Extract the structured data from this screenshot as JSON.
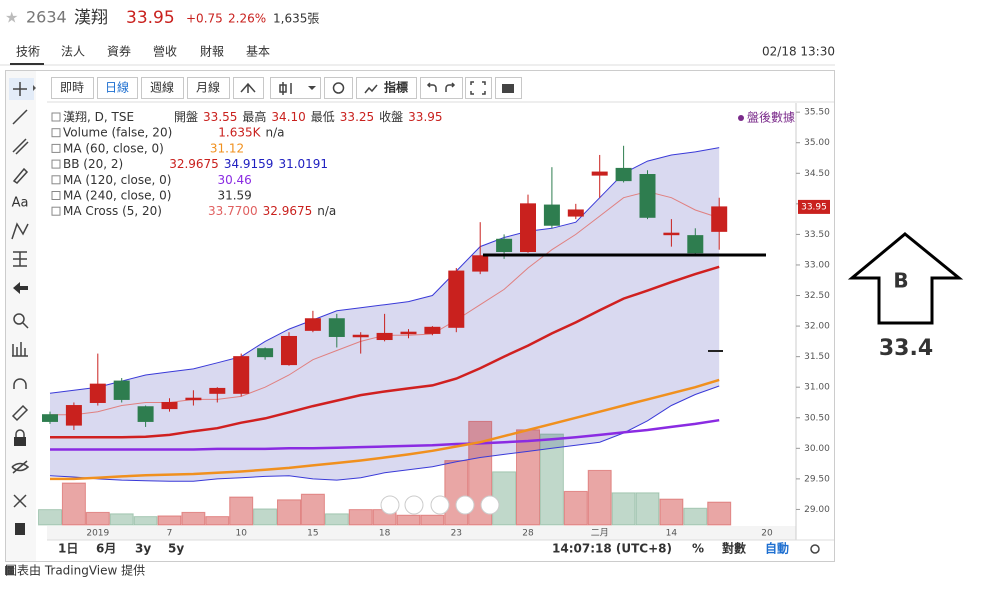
{
  "header": {
    "code": "2634",
    "name": "漢翔",
    "price": "33.95",
    "change": "+0.75",
    "change_pct": "2.26%",
    "volume": "1,635張"
  },
  "tabs": [
    "技術",
    "法人",
    "資券",
    "營收",
    "財報",
    "基本"
  ],
  "timestamp": "02/18 13:30",
  "toolbar": [
    "即時",
    "日線",
    "週線",
    "月線",
    "指標"
  ],
  "sidebar": {
    "text_tool": "Aa"
  },
  "after_hours": "盤後數據",
  "legend": [
    {
      "name": "漢翔, D, TSE",
      "values": [
        {
          "text": "開盤",
          "color": "#333333"
        },
        {
          "text": "33.55",
          "color": "#c9211e"
        },
        {
          "text": "最高",
          "color": "#333333"
        },
        {
          "text": "34.10",
          "color": "#c9211e"
        },
        {
          "text": "最低",
          "color": "#333333"
        },
        {
          "text": "33.25",
          "color": "#c9211e"
        },
        {
          "text": "收盤",
          "color": "#333333"
        },
        {
          "text": "33.95",
          "color": "#c9211e"
        }
      ]
    },
    {
      "name": "Volume (false, 20)",
      "values": [
        {
          "text": "1.635K",
          "color": "#c9211e"
        },
        {
          "text": "n/a",
          "color": "#333333"
        }
      ]
    },
    {
      "name": "MA (60, close, 0)",
      "values": [
        {
          "text": "31.12",
          "color": "#f0901e"
        }
      ]
    },
    {
      "name": "BB (20, 2)",
      "values": [
        {
          "text": "32.9675",
          "color": "#c9211e"
        },
        {
          "text": "34.9159",
          "color": "#2020c0"
        },
        {
          "text": "31.0191",
          "color": "#2020c0"
        }
      ]
    },
    {
      "name": "MA (120, close, 0)",
      "values": [
        {
          "text": "30.46",
          "color": "#8a2be2"
        }
      ]
    },
    {
      "name": "MA (240, close, 0)",
      "values": [
        {
          "text": "31.59",
          "color": "#333333"
        }
      ]
    },
    {
      "name": "MA Cross (5, 20)",
      "values": [
        {
          "text": "33.7700",
          "color": "#e06060"
        },
        {
          "text": "32.9675",
          "color": "#c9211e"
        },
        {
          "text": "n/a",
          "color": "#333333"
        }
      ]
    }
  ],
  "chart_data": {
    "type": "candlestick",
    "categories": [
      null,
      null,
      "2019",
      null,
      null,
      "7",
      null,
      null,
      "10",
      null,
      null,
      "15",
      null,
      null,
      "18",
      null,
      null,
      "23",
      null,
      null,
      "28",
      null,
      null,
      "二月",
      null,
      null,
      "14",
      null,
      null,
      null,
      "20"
    ],
    "open": [
      30.55,
      30.38,
      30.75,
      31.1,
      30.68,
      30.65,
      30.8,
      30.9,
      30.9,
      31.63,
      31.37,
      31.93,
      32.12,
      31.83,
      31.78,
      31.88,
      31.88,
      31.98,
      32.9,
      33.42,
      33.22,
      33.98,
      33.8,
      34.47,
      34.58,
      34.48,
      33.5,
      33.48,
      33.55,
      null,
      null
    ],
    "high": [
      30.6,
      30.75,
      31.55,
      31.15,
      30.7,
      30.82,
      30.95,
      31.0,
      31.55,
      31.65,
      31.9,
      32.25,
      32.2,
      31.9,
      32.2,
      31.95,
      32.0,
      32.95,
      33.7,
      33.5,
      34.15,
      34.6,
      34.0,
      34.8,
      34.95,
      34.55,
      33.75,
      33.6,
      34.1,
      null,
      null
    ],
    "low": [
      30.4,
      30.3,
      30.7,
      30.75,
      30.35,
      30.6,
      30.7,
      30.75,
      30.85,
      31.45,
      31.35,
      31.9,
      31.65,
      31.55,
      31.75,
      31.8,
      31.85,
      31.9,
      32.85,
      33.1,
      33.2,
      33.6,
      33.75,
      34.1,
      34.35,
      33.75,
      33.3,
      33.15,
      33.25,
      null,
      null
    ],
    "close": [
      30.44,
      30.7,
      31.05,
      30.8,
      30.44,
      30.75,
      30.82,
      30.98,
      31.5,
      31.5,
      31.83,
      32.12,
      31.83,
      31.85,
      31.88,
      31.9,
      31.98,
      32.9,
      33.15,
      33.22,
      34.0,
      33.65,
      33.9,
      34.52,
      34.38,
      33.78,
      33.52,
      33.2,
      33.95,
      null,
      null
    ],
    "up_color": "#c9211e",
    "down_color": "#2e7d4f",
    "volume": {
      "up_color": "rgba(201,33,30,0.4)",
      "down_color": "rgba(46,125,79,0.3)",
      "values": [
        1.1,
        3.0,
        0.9,
        0.8,
        0.6,
        0.65,
        0.9,
        0.6,
        2.0,
        1.15,
        1.8,
        2.2,
        0.8,
        1.1,
        1.1,
        0.7,
        0.7,
        4.6,
        7.4,
        3.8,
        6.8,
        6.5,
        2.4,
        3.9,
        2.3,
        2.3,
        1.85,
        1.2,
        1.635,
        null,
        null
      ]
    },
    "band": {
      "fill": "rgba(120,120,200,0.28)",
      "color": "#3a3ad8",
      "upper": [
        30.9,
        30.95,
        31.0,
        31.1,
        31.2,
        31.25,
        31.3,
        31.4,
        31.5,
        31.75,
        31.95,
        32.1,
        32.25,
        32.3,
        32.35,
        32.4,
        32.5,
        32.9,
        33.3,
        33.45,
        33.55,
        33.6,
        33.7,
        34.1,
        34.5,
        34.7,
        34.8,
        34.85,
        34.92,
        null,
        null
      ],
      "lower": [
        29.55,
        29.53,
        29.5,
        29.48,
        29.47,
        29.46,
        29.46,
        29.5,
        29.52,
        29.54,
        29.55,
        29.5,
        29.48,
        29.52,
        29.6,
        29.65,
        29.7,
        29.78,
        29.85,
        29.9,
        29.95,
        30.0,
        30.05,
        30.1,
        30.25,
        30.45,
        30.7,
        30.88,
        31.02,
        null,
        null
      ]
    },
    "overlays": [
      {
        "color": "#9a9ae0",
        "width": 1,
        "values": [
          30.18,
          30.18,
          30.18,
          30.18,
          30.19,
          30.22,
          30.28,
          30.33,
          30.42,
          30.49,
          30.59,
          30.69,
          30.78,
          30.87,
          30.93,
          30.98,
          31.03,
          31.14,
          31.31,
          31.5,
          31.68,
          31.88,
          32.06,
          32.26,
          32.45,
          32.58,
          32.72,
          32.85,
          32.97,
          null,
          null
        ],
        "hidden": true
      },
      {
        "color": "#8a2be2",
        "width": 2.5,
        "values": [
          29.98,
          29.98,
          29.98,
          29.98,
          29.98,
          29.98,
          29.98,
          29.99,
          29.99,
          29.99,
          30.0,
          30.0,
          30.01,
          30.02,
          30.03,
          30.04,
          30.05,
          30.07,
          30.08,
          30.1,
          30.12,
          30.15,
          30.18,
          30.22,
          30.26,
          30.3,
          30.35,
          30.4,
          30.46,
          null,
          null
        ]
      },
      {
        "color": "#f0901e",
        "width": 2.5,
        "values": [
          29.5,
          29.5,
          29.52,
          29.54,
          29.56,
          29.57,
          29.58,
          29.6,
          29.62,
          29.65,
          29.68,
          29.72,
          29.76,
          29.8,
          29.85,
          29.9,
          29.96,
          30.03,
          30.1,
          30.2,
          30.3,
          30.4,
          30.5,
          30.6,
          30.7,
          30.8,
          30.9,
          31.0,
          31.12,
          null,
          null
        ]
      },
      {
        "color": "#d02020",
        "width": 2.5,
        "values": [
          30.18,
          30.18,
          30.18,
          30.18,
          30.19,
          30.22,
          30.28,
          30.33,
          30.42,
          30.49,
          30.59,
          30.69,
          30.78,
          30.87,
          30.93,
          30.98,
          31.03,
          31.14,
          31.31,
          31.5,
          31.68,
          31.88,
          32.06,
          32.26,
          32.45,
          32.58,
          32.72,
          32.85,
          32.97,
          null,
          null
        ]
      },
      {
        "color": "#e08080",
        "width": 1,
        "values": [
          30.55,
          30.55,
          30.6,
          30.7,
          30.75,
          30.75,
          30.8,
          30.8,
          30.85,
          31.0,
          31.2,
          31.45,
          31.6,
          31.75,
          31.85,
          31.85,
          31.87,
          32.1,
          32.35,
          32.6,
          32.95,
          33.25,
          33.5,
          33.8,
          34.1,
          34.2,
          34.1,
          33.9,
          33.77,
          null,
          null
        ]
      }
    ],
    "ylim": [
      28.5,
      35.65
    ],
    "yticks": [
      {
        "value": 29,
        "label": "29.00"
      },
      {
        "value": 29.5,
        "label": "29.50"
      },
      {
        "value": 30,
        "label": "30.00"
      },
      {
        "value": 30.5,
        "label": "30.50"
      },
      {
        "value": 31,
        "label": "31.00"
      },
      {
        "value": 31.5,
        "label": "31.50"
      },
      {
        "value": 32,
        "label": "32.00"
      },
      {
        "value": 32.5,
        "label": "32.50"
      },
      {
        "value": 33,
        "label": "33.00"
      },
      {
        "value": 33.5,
        "label": "33.50"
      },
      {
        "value": 34,
        "label": "34.00"
      },
      {
        "value": 34.5,
        "label": "34.50"
      },
      {
        "value": 35,
        "label": "35.00"
      },
      {
        "value": 35.5,
        "label": "35.50"
      }
    ],
    "price_marker": {
      "value": 33.95,
      "color": "#c9211e"
    }
  },
  "bottom_bar": {
    "ranges": [
      "1日",
      "6月",
      "3y",
      "5y"
    ],
    "time": "14:07:18 (UTC+8)",
    "percent": "%",
    "log": "對數",
    "auto": "自動"
  },
  "annotation": {
    "label": "B",
    "value": "33.4"
  },
  "footer": "圖表由 TradingView 提供"
}
